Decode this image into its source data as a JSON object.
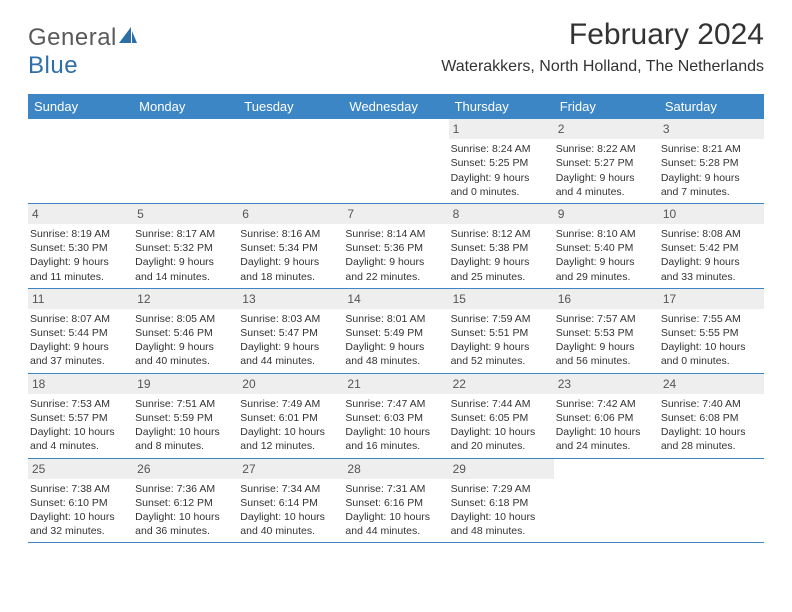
{
  "brand": {
    "text_a": "General",
    "text_b": "Blue",
    "icon_color": "#2f6fa8"
  },
  "title": "February 2024",
  "location": "Waterakkers, North Holland, The Netherlands",
  "colors": {
    "header_bg": "#3d86c6",
    "header_fg": "#ffffff",
    "daynum_bg": "#eeeeee",
    "border": "#3d86c6"
  },
  "day_names": [
    "Sunday",
    "Monday",
    "Tuesday",
    "Wednesday",
    "Thursday",
    "Friday",
    "Saturday"
  ],
  "weeks": [
    [
      {
        "n": "",
        "empty": true
      },
      {
        "n": "",
        "empty": true
      },
      {
        "n": "",
        "empty": true
      },
      {
        "n": "",
        "empty": true
      },
      {
        "n": "1",
        "sr": "8:24 AM",
        "ss": "5:25 PM",
        "dl": "9 hours and 0 minutes."
      },
      {
        "n": "2",
        "sr": "8:22 AM",
        "ss": "5:27 PM",
        "dl": "9 hours and 4 minutes."
      },
      {
        "n": "3",
        "sr": "8:21 AM",
        "ss": "5:28 PM",
        "dl": "9 hours and 7 minutes."
      }
    ],
    [
      {
        "n": "4",
        "sr": "8:19 AM",
        "ss": "5:30 PM",
        "dl": "9 hours and 11 minutes."
      },
      {
        "n": "5",
        "sr": "8:17 AM",
        "ss": "5:32 PM",
        "dl": "9 hours and 14 minutes."
      },
      {
        "n": "6",
        "sr": "8:16 AM",
        "ss": "5:34 PM",
        "dl": "9 hours and 18 minutes."
      },
      {
        "n": "7",
        "sr": "8:14 AM",
        "ss": "5:36 PM",
        "dl": "9 hours and 22 minutes."
      },
      {
        "n": "8",
        "sr": "8:12 AM",
        "ss": "5:38 PM",
        "dl": "9 hours and 25 minutes."
      },
      {
        "n": "9",
        "sr": "8:10 AM",
        "ss": "5:40 PM",
        "dl": "9 hours and 29 minutes."
      },
      {
        "n": "10",
        "sr": "8:08 AM",
        "ss": "5:42 PM",
        "dl": "9 hours and 33 minutes."
      }
    ],
    [
      {
        "n": "11",
        "sr": "8:07 AM",
        "ss": "5:44 PM",
        "dl": "9 hours and 37 minutes."
      },
      {
        "n": "12",
        "sr": "8:05 AM",
        "ss": "5:46 PM",
        "dl": "9 hours and 40 minutes."
      },
      {
        "n": "13",
        "sr": "8:03 AM",
        "ss": "5:47 PM",
        "dl": "9 hours and 44 minutes."
      },
      {
        "n": "14",
        "sr": "8:01 AM",
        "ss": "5:49 PM",
        "dl": "9 hours and 48 minutes."
      },
      {
        "n": "15",
        "sr": "7:59 AM",
        "ss": "5:51 PM",
        "dl": "9 hours and 52 minutes."
      },
      {
        "n": "16",
        "sr": "7:57 AM",
        "ss": "5:53 PM",
        "dl": "9 hours and 56 minutes."
      },
      {
        "n": "17",
        "sr": "7:55 AM",
        "ss": "5:55 PM",
        "dl": "10 hours and 0 minutes."
      }
    ],
    [
      {
        "n": "18",
        "sr": "7:53 AM",
        "ss": "5:57 PM",
        "dl": "10 hours and 4 minutes."
      },
      {
        "n": "19",
        "sr": "7:51 AM",
        "ss": "5:59 PM",
        "dl": "10 hours and 8 minutes."
      },
      {
        "n": "20",
        "sr": "7:49 AM",
        "ss": "6:01 PM",
        "dl": "10 hours and 12 minutes."
      },
      {
        "n": "21",
        "sr": "7:47 AM",
        "ss": "6:03 PM",
        "dl": "10 hours and 16 minutes."
      },
      {
        "n": "22",
        "sr": "7:44 AM",
        "ss": "6:05 PM",
        "dl": "10 hours and 20 minutes."
      },
      {
        "n": "23",
        "sr": "7:42 AM",
        "ss": "6:06 PM",
        "dl": "10 hours and 24 minutes."
      },
      {
        "n": "24",
        "sr": "7:40 AM",
        "ss": "6:08 PM",
        "dl": "10 hours and 28 minutes."
      }
    ],
    [
      {
        "n": "25",
        "sr": "7:38 AM",
        "ss": "6:10 PM",
        "dl": "10 hours and 32 minutes."
      },
      {
        "n": "26",
        "sr": "7:36 AM",
        "ss": "6:12 PM",
        "dl": "10 hours and 36 minutes."
      },
      {
        "n": "27",
        "sr": "7:34 AM",
        "ss": "6:14 PM",
        "dl": "10 hours and 40 minutes."
      },
      {
        "n": "28",
        "sr": "7:31 AM",
        "ss": "6:16 PM",
        "dl": "10 hours and 44 minutes."
      },
      {
        "n": "29",
        "sr": "7:29 AM",
        "ss": "6:18 PM",
        "dl": "10 hours and 48 minutes."
      },
      {
        "n": "",
        "empty": true
      },
      {
        "n": "",
        "empty": true
      }
    ]
  ],
  "labels": {
    "sunrise": "Sunrise: ",
    "sunset": "Sunset: ",
    "daylight": "Daylight: "
  }
}
